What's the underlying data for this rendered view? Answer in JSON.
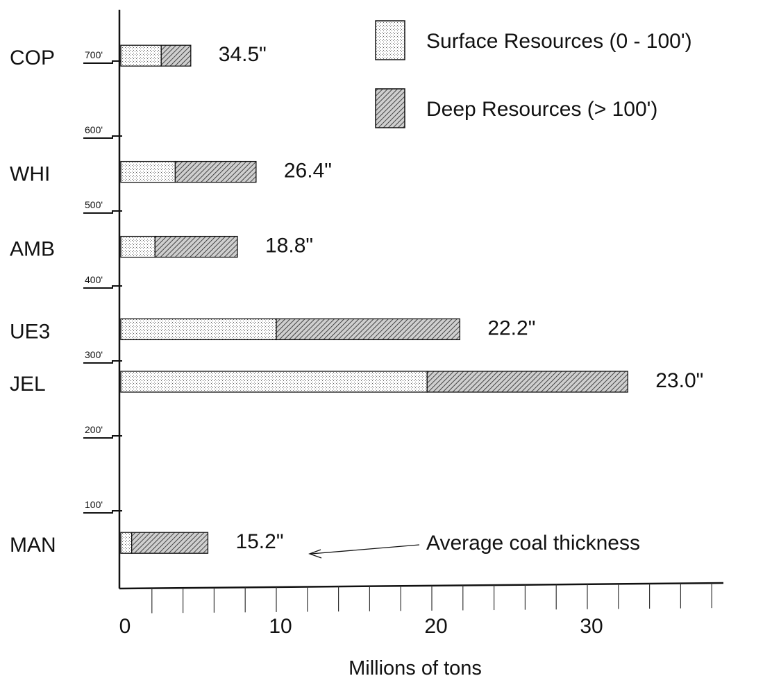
{
  "chart_data": {
    "type": "bar",
    "orientation": "horizontal",
    "stacked": true,
    "xlabel": "Millions of tons",
    "ylabel": "",
    "xlim": [
      0,
      38
    ],
    "x_ticks": [
      0,
      10,
      20,
      30
    ],
    "depth_axis": {
      "ticks": [
        "100'",
        "200'",
        "300'",
        "400'",
        "500'",
        "600'",
        "700'"
      ],
      "values": [
        100,
        200,
        300,
        400,
        500,
        600,
        700
      ]
    },
    "categories": [
      "COP",
      "WHI",
      "AMB",
      "UE3",
      "JEL",
      "MAN"
    ],
    "depth": [
      710,
      555,
      455,
      345,
      275,
      60
    ],
    "series": [
      {
        "name": "Surface Resources  (0 - 100')",
        "values": [
          2.6,
          3.5,
          2.2,
          10.0,
          19.7,
          0.7
        ]
      },
      {
        "name": "Deep Resources  (> 100')",
        "values": [
          1.9,
          5.2,
          5.3,
          11.8,
          12.9,
          4.9
        ]
      }
    ],
    "thickness_labels": [
      "34.5\"",
      "26.4\"",
      "18.8\"",
      "22.2\"",
      "23.0\"",
      "15.2\""
    ],
    "annotation": "Average coal thickness",
    "legend_position": "top-right",
    "grid": false
  }
}
